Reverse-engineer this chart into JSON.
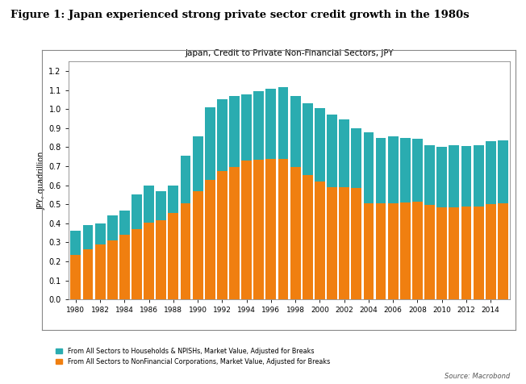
{
  "title": "Japan, Credit to Private Non-Financial Sectors, JPY",
  "figure_title": "Figure 1: Japan experienced strong private sector credit growth in the 1980s",
  "ylabel": "JPY, quadrillion",
  "source": "Source: Macrobond",
  "legend1": "From All Sectors to Households & NPISHs, Market Value, Adjusted for Breaks",
  "legend2": "From All Sectors to NonFinancial Corporations, Market Value, Adjusted for Breaks",
  "color_households": "#2aacb0",
  "color_corps": "#f07f10",
  "years": [
    1980,
    1981,
    1982,
    1983,
    1984,
    1985,
    1986,
    1987,
    1988,
    1989,
    1990,
    1991,
    1992,
    1993,
    1994,
    1995,
    1996,
    1997,
    1998,
    1999,
    2000,
    2001,
    2002,
    2003,
    2004,
    2005,
    2006,
    2007,
    2008,
    2009,
    2010,
    2011,
    2012,
    2013,
    2014,
    2015
  ],
  "corps": [
    0.235,
    0.265,
    0.29,
    0.31,
    0.34,
    0.37,
    0.405,
    0.415,
    0.455,
    0.505,
    0.57,
    0.63,
    0.675,
    0.695,
    0.73,
    0.735,
    0.74,
    0.74,
    0.695,
    0.655,
    0.62,
    0.59,
    0.59,
    0.585,
    0.505,
    0.505,
    0.505,
    0.51,
    0.515,
    0.495,
    0.485,
    0.485,
    0.49,
    0.49,
    0.5,
    0.505
  ],
  "households": [
    0.125,
    0.125,
    0.11,
    0.13,
    0.125,
    0.18,
    0.195,
    0.155,
    0.145,
    0.25,
    0.285,
    0.38,
    0.375,
    0.375,
    0.345,
    0.36,
    0.365,
    0.375,
    0.375,
    0.375,
    0.385,
    0.38,
    0.355,
    0.315,
    0.375,
    0.345,
    0.35,
    0.34,
    0.33,
    0.315,
    0.315,
    0.325,
    0.315,
    0.32,
    0.33,
    0.33
  ],
  "ylim": [
    0.0,
    1.25
  ],
  "yticks": [
    0.0,
    0.1,
    0.2,
    0.3,
    0.4,
    0.5,
    0.6,
    0.7,
    0.8,
    0.9,
    1.0,
    1.1,
    1.2
  ],
  "bg_color": "#ffffff",
  "box_color": "#cccccc"
}
